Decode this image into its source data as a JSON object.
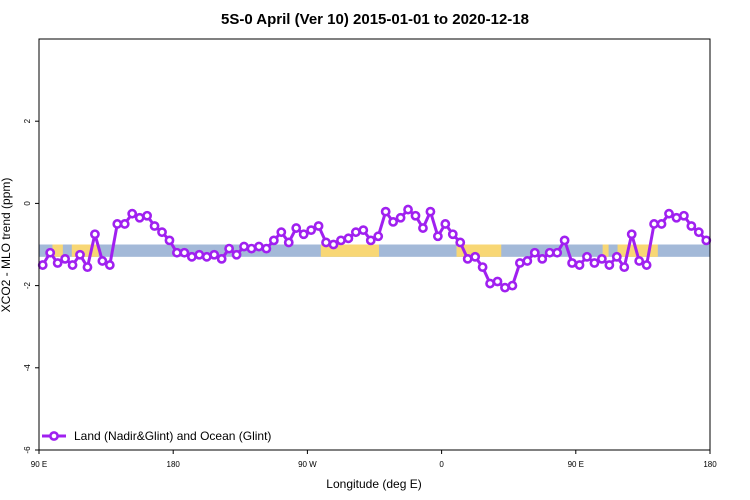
{
  "chart_data": {
    "type": "line",
    "title": "5S-0 April (Ver 10)   2015-01-01 to 2020-12-18",
    "xlabel": "Longitude (deg E)",
    "ylabel": "XCO2 - MLO trend (ppm)",
    "xlim": [
      90,
      540
    ],
    "ylim": [
      -6,
      4
    ],
    "x_ticks": [
      {
        "value": 90,
        "label": "90 E"
      },
      {
        "value": 180,
        "label": "180"
      },
      {
        "value": 270,
        "label": "90 W"
      },
      {
        "value": 360,
        "label": "0"
      },
      {
        "value": 450,
        "label": "90 E"
      },
      {
        "value": 540,
        "label": "180"
      }
    ],
    "y_ticks": [
      {
        "value": -6,
        "label": "-6"
      },
      {
        "value": -4,
        "label": "-4"
      },
      {
        "value": -2,
        "label": "-2"
      },
      {
        "value": 0,
        "label": "0"
      },
      {
        "value": 2,
        "label": "2"
      }
    ],
    "grid": false,
    "legend_position": "bottom-left",
    "band": {
      "y_range": [
        -1.3,
        -1.0
      ],
      "ocean_color": "#a3b9d8",
      "land_color": "#f8d775",
      "land_segments": [
        {
          "xmin": 99,
          "xmax": 106
        },
        {
          "xmin": 112,
          "xmax": 130
        },
        {
          "xmin": 279,
          "xmax": 318
        },
        {
          "xmin": 370,
          "xmax": 400
        },
        {
          "xmin": 468,
          "xmax": 472
        },
        {
          "xmin": 478,
          "xmax": 505
        }
      ]
    },
    "series": [
      {
        "name": "Land (Nadir&Glint) and Ocean (Glint)",
        "color": "#a020f0",
        "x": [
          92.5,
          97.5,
          102.5,
          107.5,
          112.5,
          117.5,
          122.5,
          127.5,
          132.5,
          137.5,
          142.5,
          147.5,
          152.5,
          157.5,
          162.5,
          167.5,
          172.5,
          177.5,
          182.5,
          187.5,
          192.5,
          197.5,
          202.5,
          207.5,
          212.5,
          217.5,
          222.5,
          227.5,
          232.5,
          237.5,
          242.5,
          247.5,
          252.5,
          257.5,
          262.5,
          267.5,
          272.5,
          277.5,
          282.5,
          287.5,
          292.5,
          297.5,
          302.5,
          307.5,
          312.5,
          317.5,
          322.5,
          327.5,
          332.5,
          337.5,
          342.5,
          347.5,
          352.5,
          357.5,
          362.5,
          367.5,
          372.5,
          377.5,
          382.5,
          387.5,
          392.5,
          397.5,
          402.5,
          407.5,
          412.5,
          417.5,
          422.5,
          427.5,
          432.5,
          437.5,
          442.5,
          447.5,
          452.5,
          457.5,
          462.5,
          467.5,
          472.5,
          477.5,
          482.5,
          487.5,
          492.5,
          497.5,
          502.5,
          507.5,
          512.5,
          517.5,
          522.5,
          527.5,
          532.5,
          537.5
        ],
        "y": [
          -1.5,
          -1.2,
          -1.45,
          -1.35,
          -1.5,
          -1.25,
          -1.55,
          -0.75,
          -1.4,
          -1.5,
          -0.5,
          -0.5,
          -0.25,
          -0.35,
          -0.3,
          -0.55,
          -0.7,
          -0.9,
          -1.2,
          -1.2,
          -1.3,
          -1.25,
          -1.3,
          -1.25,
          -1.35,
          -1.1,
          -1.25,
          -1.05,
          -1.1,
          -1.05,
          -1.1,
          -0.9,
          -0.7,
          -0.95,
          -0.6,
          -0.75,
          -0.65,
          -0.55,
          -0.95,
          -1.0,
          -0.9,
          -0.85,
          -0.7,
          -0.65,
          -0.9,
          -0.8,
          -0.2,
          -0.45,
          -0.35,
          -0.15,
          -0.3,
          -0.6,
          -0.2,
          -0.8,
          -0.5,
          -0.75,
          -0.95,
          -1.35,
          -1.3,
          -1.55,
          -1.95,
          -1.9,
          -2.05,
          -2.0,
          -1.45,
          -1.4,
          -1.2,
          -1.35,
          -1.2,
          -1.2,
          -0.9,
          -1.45,
          -1.5,
          -1.3,
          -1.45,
          -1.35,
          -1.5,
          -1.3,
          -1.55,
          -0.75,
          -1.4,
          -1.5,
          -0.5,
          -0.5,
          -0.25,
          -0.35,
          -0.3,
          -0.55,
          -0.7,
          -0.9
        ]
      }
    ]
  }
}
